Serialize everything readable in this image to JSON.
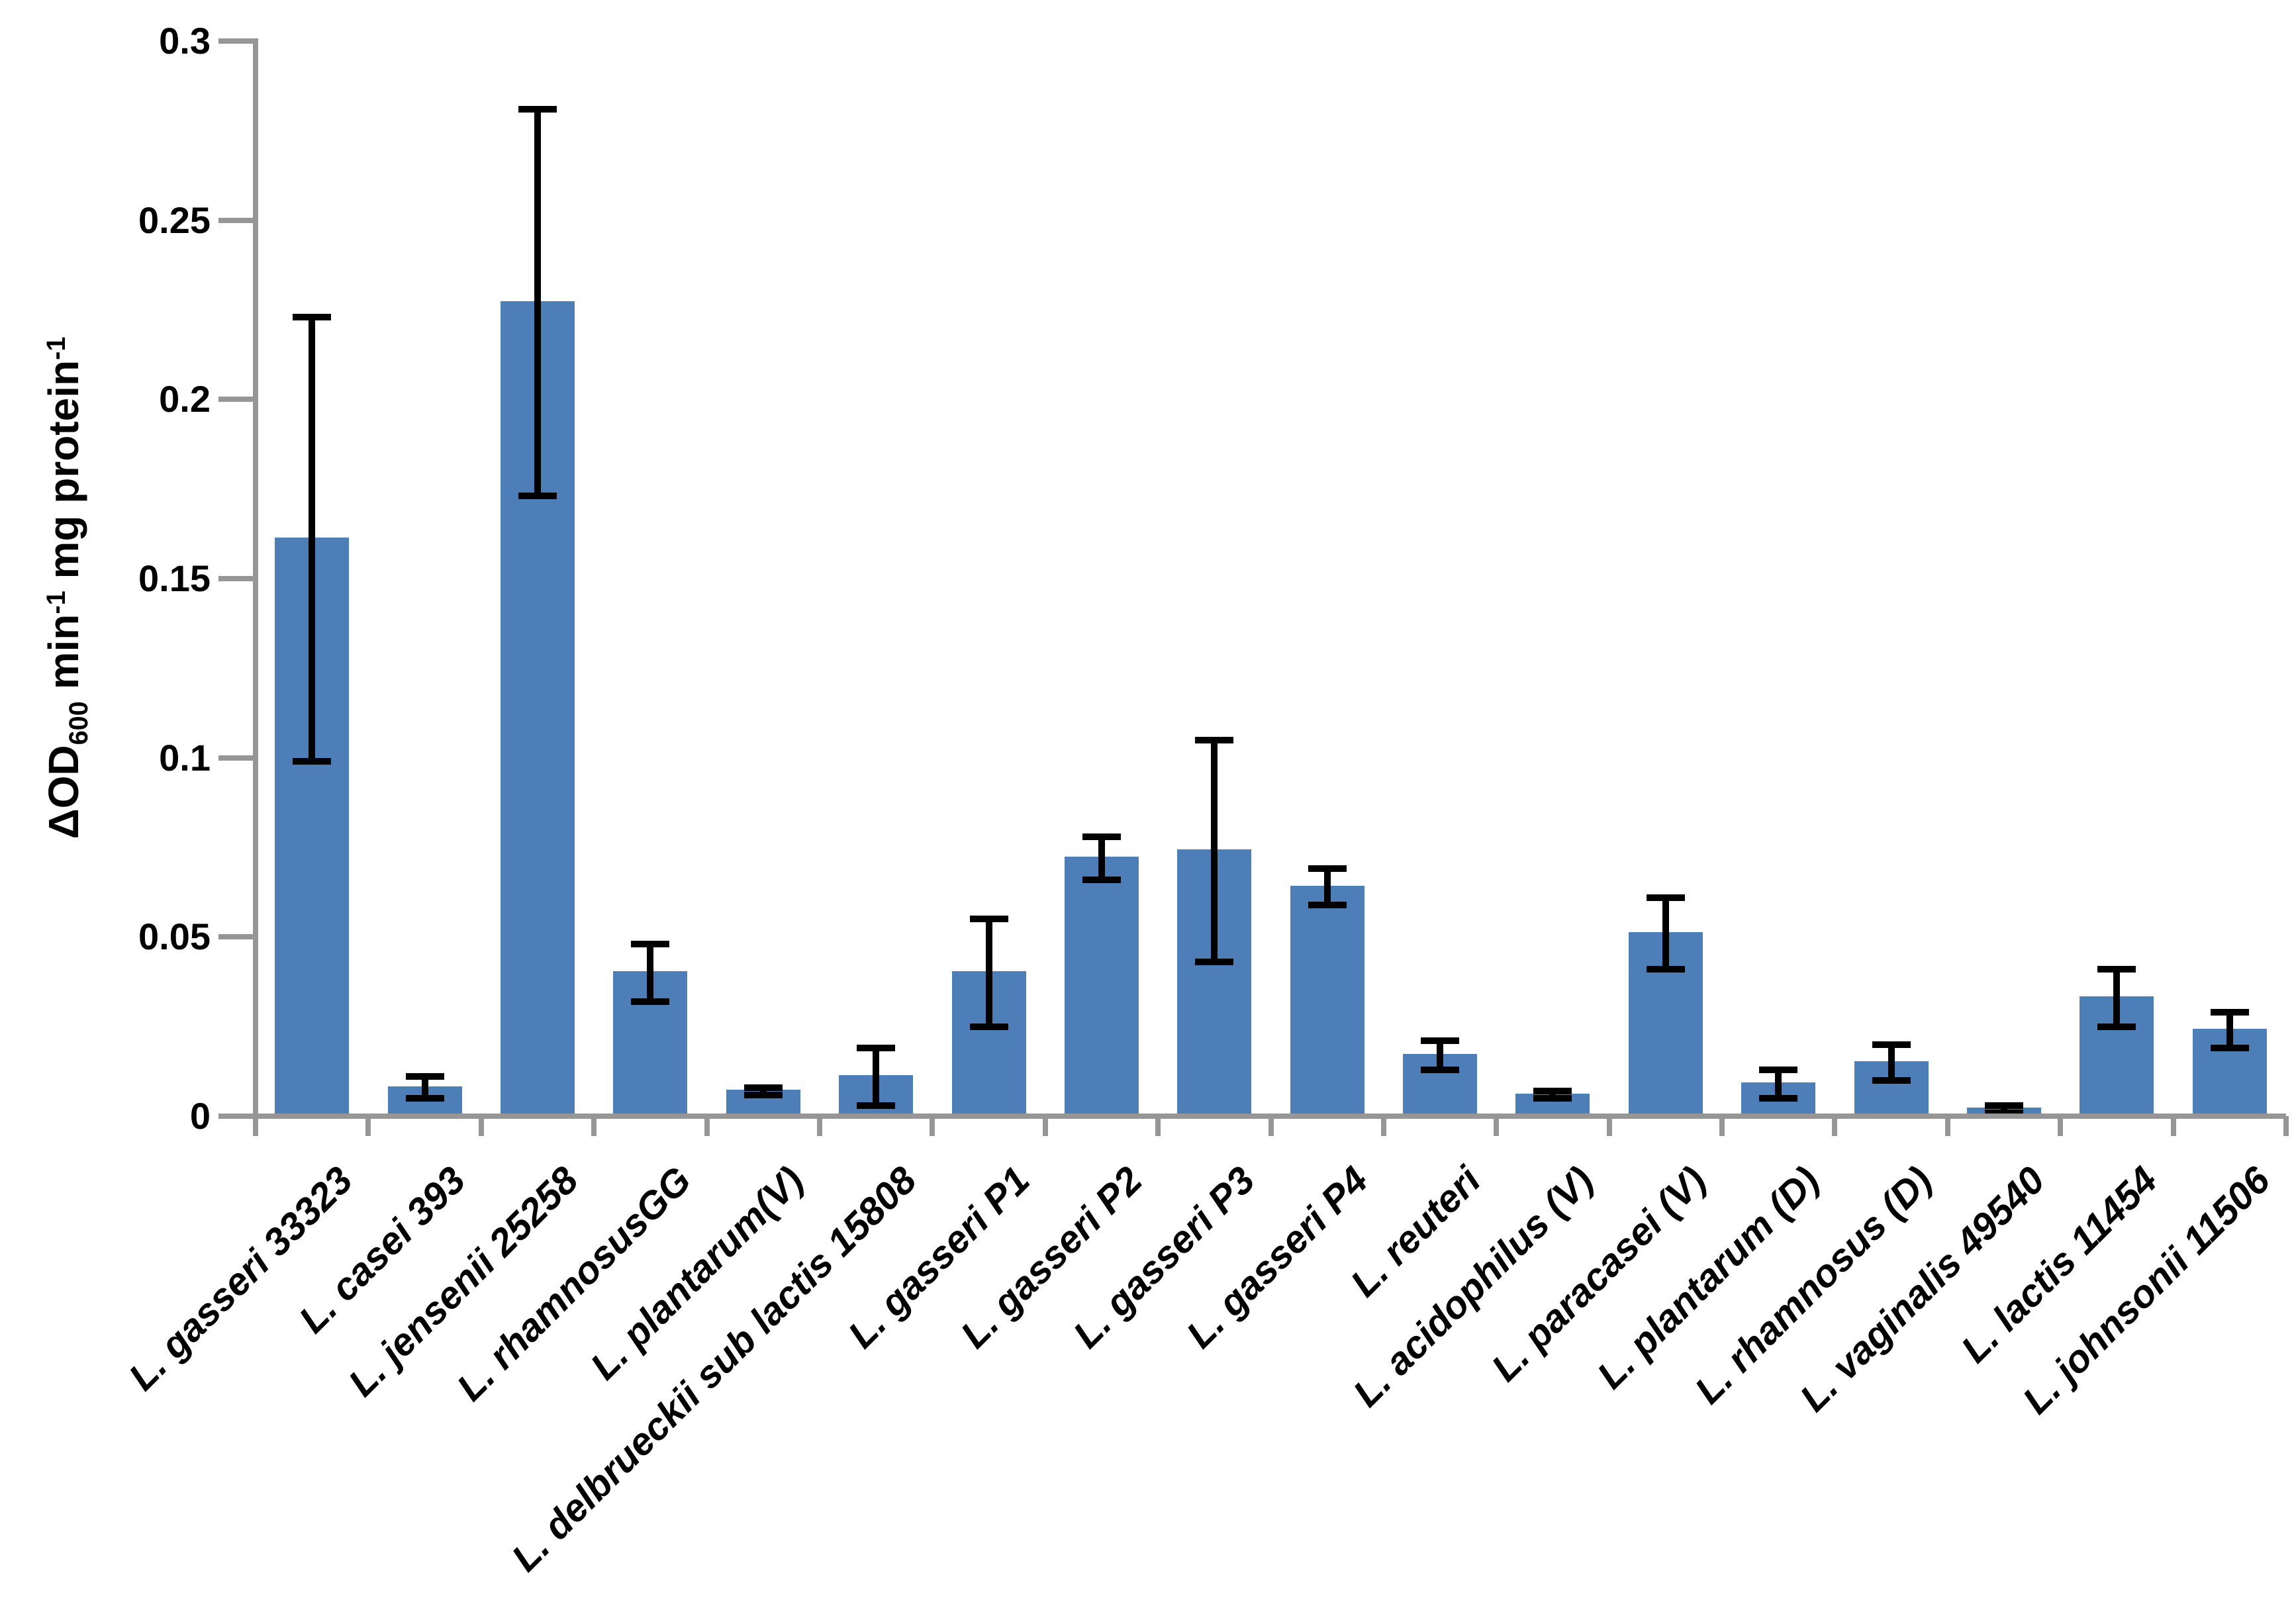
{
  "chart_data": {
    "type": "bar",
    "title": "",
    "xlabel": "",
    "ylabel_plain": "ΔOD600 min-1 mg protein-1",
    "ylabel_segments": [
      {
        "text": "ΔOD",
        "style": "normal"
      },
      {
        "text": "600",
        "style": "sub"
      },
      {
        "text": " min",
        "style": "normal"
      },
      {
        "text": "-1",
        "style": "sup"
      },
      {
        "text": " mg protein",
        "style": "normal"
      },
      {
        "text": "-1",
        "style": "sup"
      }
    ],
    "categories": [
      "L. gasseri 33323",
      "L. casei 393",
      "L. jensenii 25258",
      "L. rhamnosusGG",
      "L. plantarum(V)",
      "L. delbrueckii sub lactis 15808",
      "L. gasseri P1",
      "L. gasseri P2",
      "L. gasseri P3",
      "L. gasseri P4",
      "L. reuteri",
      "L. acidophilus (V)",
      "L. paracasei (V)",
      "L. plantarum (D)",
      "L. rhamnosus (D)",
      "L. vaginalis 49540",
      "L. lactis 11454",
      "L. johnsonii 11506"
    ],
    "values": [
      0.161,
      0.008,
      0.227,
      0.04,
      0.007,
      0.011,
      0.04,
      0.072,
      0.074,
      0.064,
      0.017,
      0.006,
      0.051,
      0.009,
      0.015,
      0.002,
      0.033,
      0.024
    ],
    "errors": [
      0.062,
      0.003,
      0.054,
      0.008,
      0.001,
      0.008,
      0.015,
      0.006,
      0.031,
      0.005,
      0.004,
      0.001,
      0.01,
      0.004,
      0.005,
      0.001,
      0.008,
      0.005
    ],
    "yticks": [
      0,
      0.05,
      0.1,
      0.15,
      0.2,
      0.25,
      0.3
    ],
    "ytick_labels": [
      "0",
      "0.05",
      "0.1",
      "0.15",
      "0.2",
      "0.25",
      "0.3"
    ],
    "ylim": [
      0,
      0.3
    ],
    "grid": false,
    "legend": null,
    "bar_color": "#4D7EB8",
    "axis_color": "#969696",
    "error_color": "#000000",
    "text_color": "#000000"
  }
}
